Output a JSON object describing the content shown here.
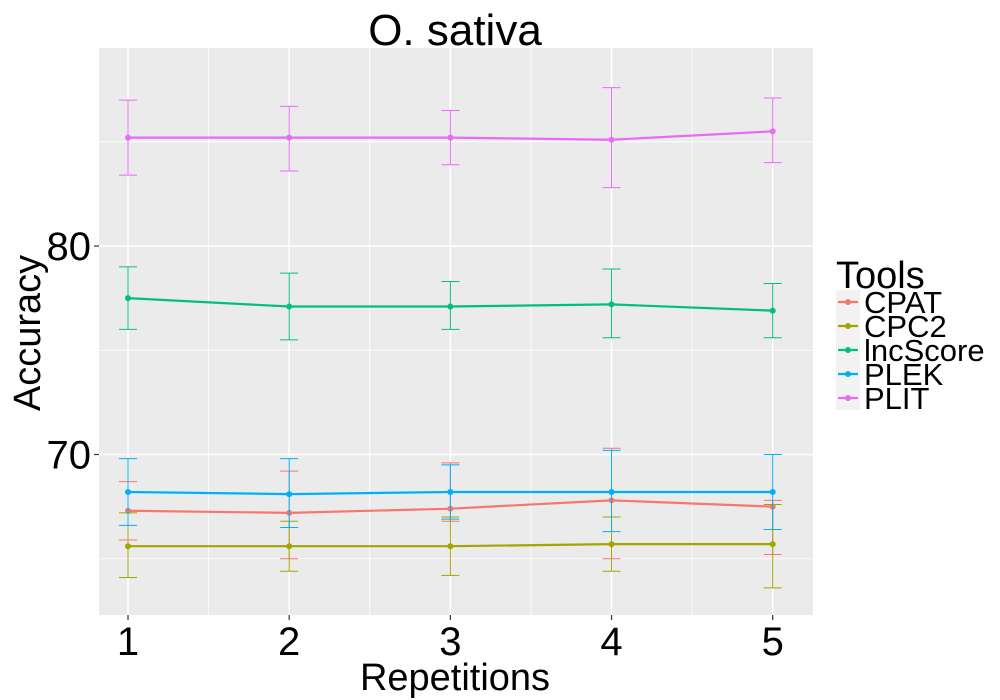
{
  "chart_data": {
    "type": "line",
    "title": "O. sativa",
    "xlabel": "Repetitions",
    "ylabel": "Accuracy",
    "x": [
      1,
      2,
      3,
      4,
      5
    ],
    "xlim": [
      0.82,
      5.25
    ],
    "ylim": [
      62.3,
      89.5
    ],
    "yticks": [
      70,
      80
    ],
    "grid": true,
    "legend": {
      "title": "Tools",
      "position": "right"
    },
    "series": [
      {
        "name": "CPAT",
        "color": "#F8766D",
        "values": [
          67.3,
          67.2,
          67.4,
          67.8,
          67.5
        ],
        "lower": [
          65.9,
          65.0,
          66.8,
          65.0,
          65.2
        ],
        "upper": [
          68.7,
          69.2,
          69.6,
          70.3,
          67.8
        ]
      },
      {
        "name": "CPC2",
        "color": "#A3A500",
        "values": [
          65.6,
          65.6,
          65.6,
          65.7,
          65.7
        ],
        "lower": [
          64.1,
          64.4,
          64.2,
          64.4,
          63.6
        ],
        "upper": [
          67.2,
          66.8,
          67.0,
          67.0,
          67.6
        ]
      },
      {
        "name": "lncScore",
        "color": "#00BF7D",
        "values": [
          77.5,
          77.1,
          77.1,
          77.2,
          76.9
        ],
        "lower": [
          76.0,
          75.5,
          76.0,
          75.6,
          75.6
        ],
        "upper": [
          79.0,
          78.7,
          78.3,
          78.9,
          78.2
        ]
      },
      {
        "name": "PLEK",
        "color": "#00B0F6",
        "values": [
          68.2,
          68.1,
          68.2,
          68.2,
          68.2
        ],
        "lower": [
          66.6,
          66.5,
          66.9,
          66.3,
          66.4
        ],
        "upper": [
          69.8,
          69.8,
          69.5,
          70.2,
          70.0
        ]
      },
      {
        "name": "PLIT",
        "color": "#E76BF3",
        "values": [
          85.2,
          85.2,
          85.2,
          85.1,
          85.5
        ],
        "lower": [
          83.4,
          83.6,
          83.9,
          82.8,
          84.0
        ],
        "upper": [
          87.0,
          86.7,
          86.5,
          87.6,
          87.1
        ]
      }
    ]
  }
}
